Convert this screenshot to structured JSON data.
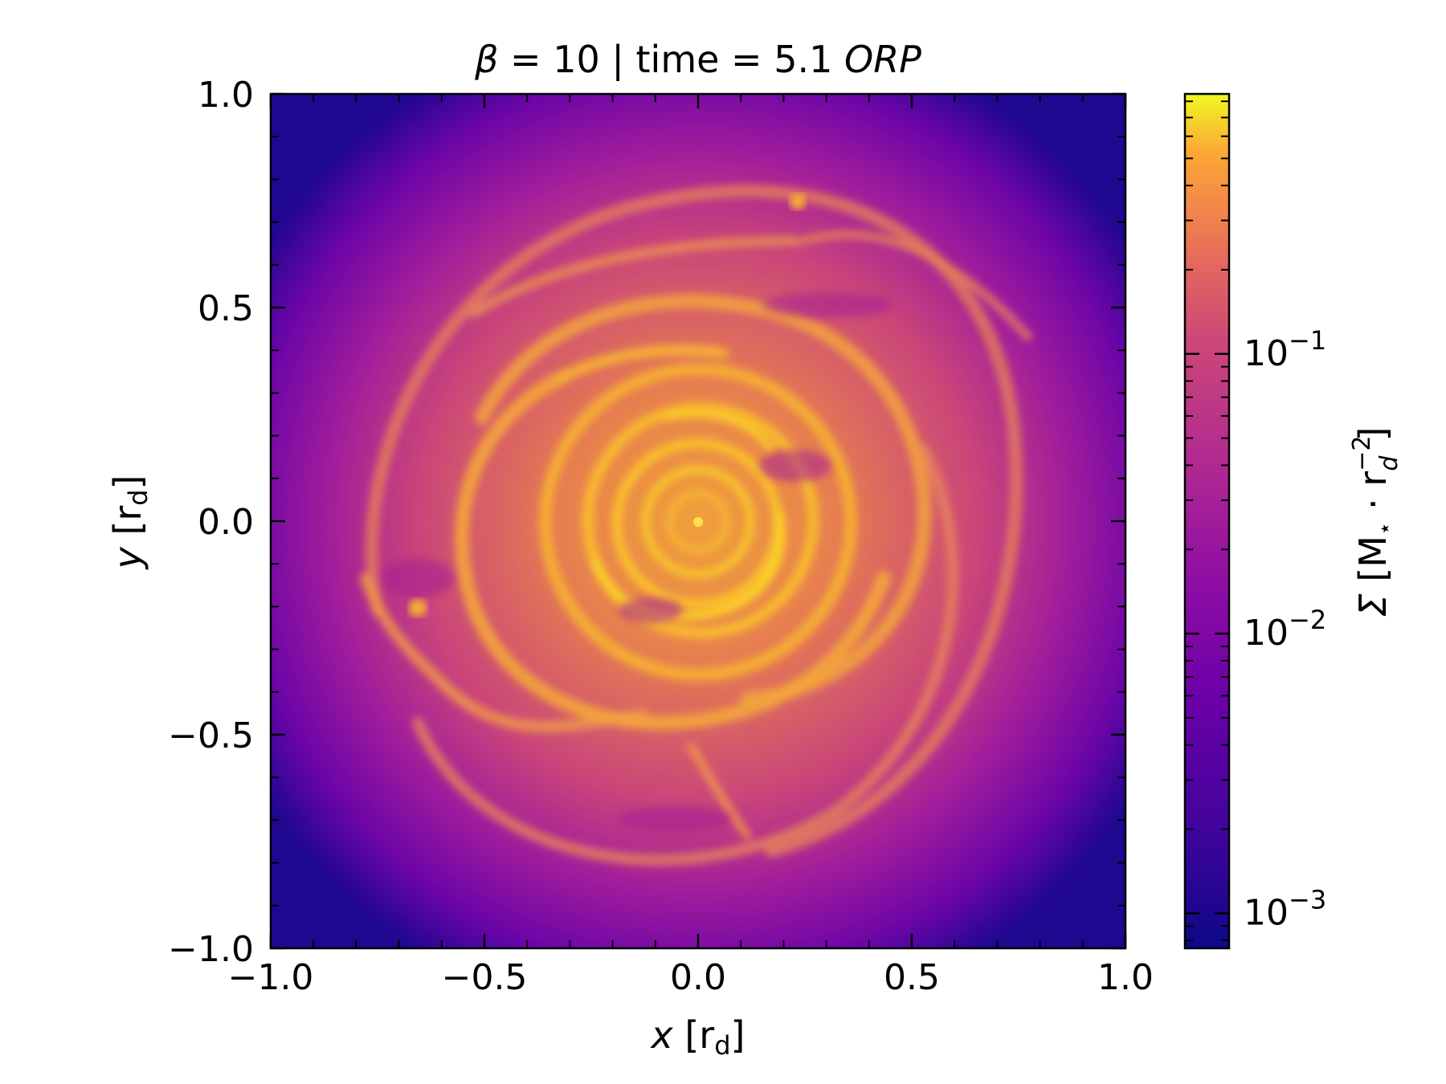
{
  "chart_data": {
    "type": "heatmap",
    "title": {
      "beta_symbol": "β",
      "middle": " = 10 | time = 5.1 ",
      "unit": "ORP"
    },
    "xlabel": {
      "var": "x",
      "unit": "[r",
      "sub": "d",
      "close": "]"
    },
    "ylabel": {
      "var": "y",
      "unit": "[r",
      "sub": "d",
      "close": "]"
    },
    "xlim": [
      -1.0,
      1.0
    ],
    "ylim": [
      -1.0,
      1.0
    ],
    "x_ticks": [
      -1.0,
      -0.5,
      0.0,
      0.5,
      1.0
    ],
    "y_ticks": [
      -1.0,
      -0.5,
      0.0,
      0.5,
      1.0
    ],
    "x_tick_labels": [
      "−1.0",
      "−0.5",
      "0.0",
      "0.5",
      "1.0"
    ],
    "y_tick_labels": [
      "−1.0",
      "−0.5",
      "0.0",
      "0.5",
      "1.0"
    ],
    "colormap": "plasma",
    "colorbar": {
      "scale": "log",
      "range": [
        0.00075,
        0.85
      ],
      "ticks": [
        0.001,
        0.01,
        0.1
      ],
      "tick_labels": [
        {
          "base": "10",
          "exp": "−3"
        },
        {
          "base": "10",
          "exp": "−2"
        },
        {
          "base": "10",
          "exp": "−1"
        }
      ],
      "label": {
        "sigma": "Σ",
        "open": " [M",
        "star": "⋆",
        "dot": " · r",
        "exp": "−2",
        "sub": "d",
        "close": "]"
      }
    },
    "grid": false,
    "colors": [
      "#0d0887",
      "#6a00a8",
      "#b12a90",
      "#e16462",
      "#fca636",
      "#f0f921"
    ]
  }
}
